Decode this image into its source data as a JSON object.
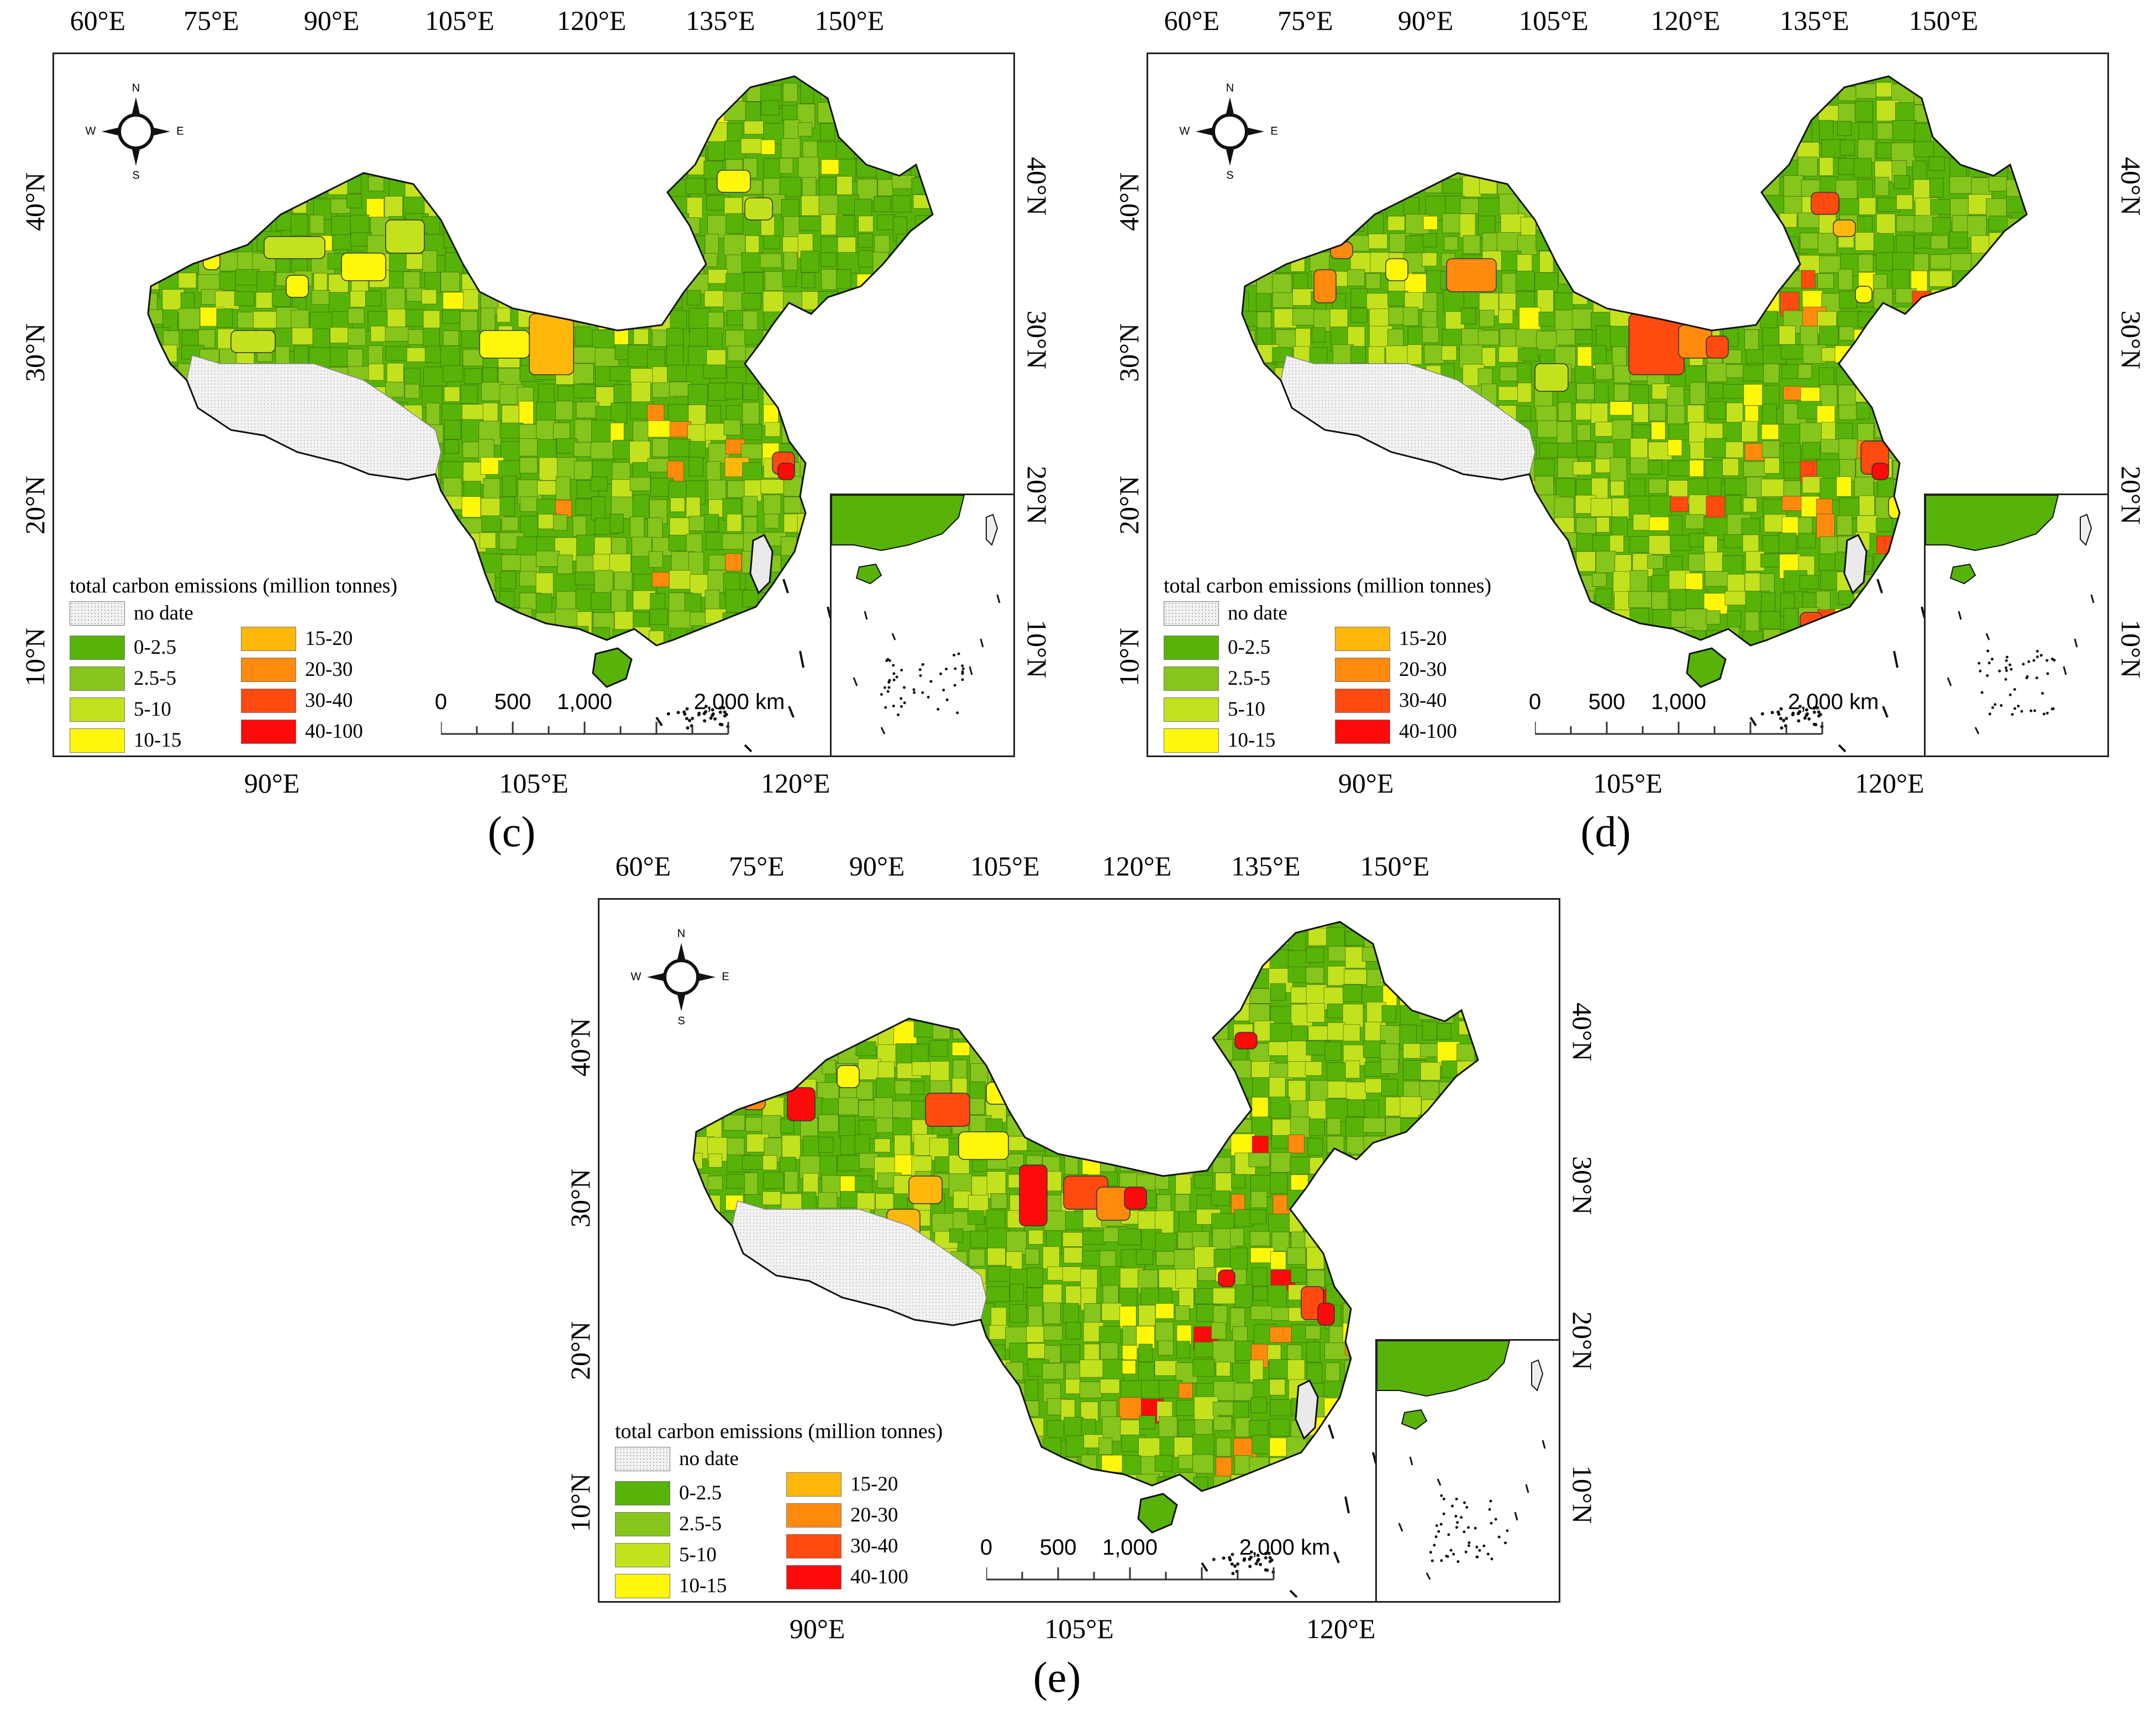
{
  "colors": {
    "no_data": "#f2f2f2",
    "c1": "#57b307",
    "c2": "#85c51c",
    "c3": "#c3e21d",
    "c4": "#fff70a",
    "c5": "#ffb70b",
    "c6": "#ff8a0e",
    "c7": "#ff4a10",
    "c8": "#ff0a0a"
  },
  "ticks": {
    "top": [
      "60°E",
      "75°E",
      "90°E",
      "105°E",
      "120°E",
      "135°E",
      "150°E"
    ],
    "bottom": [
      "90°E",
      "105°E",
      "120°E"
    ],
    "left": [
      "40°N",
      "30°N",
      "20°N",
      "10°N"
    ],
    "right": [
      "40°N",
      "30°N",
      "20°N",
      "10°N"
    ]
  },
  "compass": {
    "n": "N",
    "s": "S",
    "e": "E",
    "w": "W"
  },
  "legend": {
    "title": "total carbon emissions (million tonnes)",
    "no_data_label": "no date",
    "classes": [
      "0-2.5",
      "2.5-5",
      "5-10",
      "10-15",
      "15-20",
      "20-30",
      "30-40",
      "40-100"
    ]
  },
  "scalebar": {
    "labels": [
      "0",
      "500",
      "1,000",
      "2,000 km"
    ]
  },
  "panels": [
    {
      "id": "c",
      "label": "(c)",
      "intensity": 0
    },
    {
      "id": "d",
      "label": "(d)",
      "intensity": 1
    },
    {
      "id": "e",
      "label": "(e)",
      "intensity": 2
    }
  ]
}
